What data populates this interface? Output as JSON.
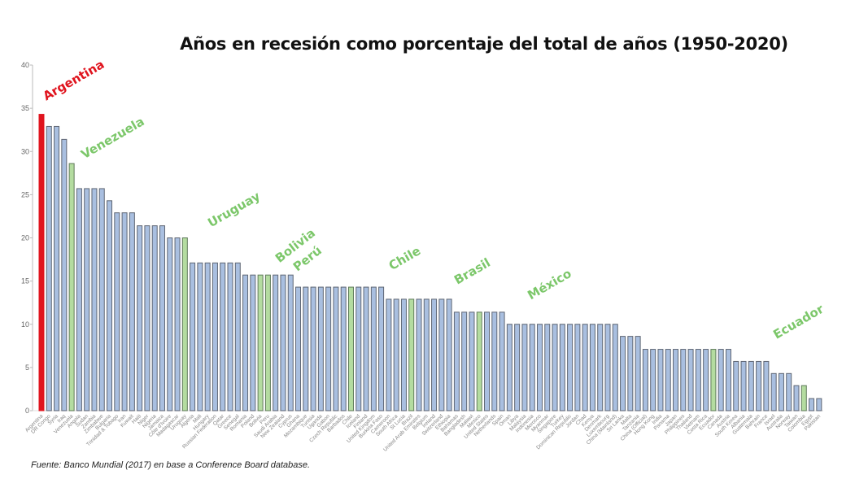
{
  "chart_data": {
    "type": "bar",
    "title": "Años en recesión como porcentaje del total de años (1950-2020)",
    "source": "Fuente: Banco Mundial (2017) en base a Conference Board database.",
    "xlabel": "",
    "ylabel": "",
    "ylim": [
      0,
      40
    ],
    "yticks": [
      0,
      5,
      10,
      15,
      20,
      25,
      30,
      35,
      40
    ],
    "grid": false,
    "colors": {
      "default": "#a9bfe0",
      "highlight_latam": "#b4dca0",
      "argentina": "#e0141e",
      "annotation_green": "#7cc76a",
      "annotation_red": "#e0141e"
    },
    "categories": [
      "Argentina",
      "DR Congo",
      "Syria",
      "Iraq",
      "Venezuela",
      "Angola",
      "Sudan",
      "Zambia",
      "Zimbabwe",
      "Bulgaria",
      "Trinidad & Tobago",
      "Iran",
      "Kuwait",
      "Haiti",
      "Niger",
      "Nigeria",
      "Jamaica",
      "Côte d'Ivoire",
      "Madagascar",
      "Uruguay",
      "Algeria",
      "Mali",
      "Hungary",
      "Russian Federation",
      "Qatar",
      "Greece",
      "Senegal",
      "Romania",
      "Poland",
      "Bolivia",
      "Peru",
      "Saudi Arabia",
      "New Zealand",
      "Cyprus",
      "Ghana",
      "Mozambique",
      "Tunisia",
      "Uganda",
      "Gabon",
      "Czech Republic",
      "Barbados",
      "Chile",
      "Iceland",
      "Finland",
      "United Kingdom",
      "Burkina Faso",
      "Cameroon",
      "South Africa",
      "St Lucia",
      "Brazil",
      "United Arab Emirates",
      "Belgium",
      "Ireland",
      "Switzerland",
      "Ethiopia",
      "Bahamas",
      "Bangladesh",
      "Malawi",
      "Mexico",
      "United States",
      "Netherlands",
      "Spain",
      "Oman",
      "Libya",
      "Malaysia",
      "Indonesia",
      "Morocco",
      "Myanmar",
      "Singapore",
      "Turkey",
      "Dominican Republic",
      "Jordan",
      "Chad",
      "Kenya",
      "Denmark",
      "Luxembourg",
      "China (Mainland)",
      "Sri Lanka",
      "Malta",
      "Tanzania",
      "China (Official)",
      "Hong Kong",
      "India",
      "Panama",
      "Japan",
      "Philippines",
      "Thailand",
      "Vietnam",
      "Costa Rica",
      "Ecuador",
      "Canada",
      "Austria",
      "South Korea",
      "Albania",
      "Guatemala",
      "Bahrain",
      "France",
      "Israel",
      "Australia",
      "Norway",
      "Taiwan",
      "Colombia",
      "Egypt",
      "Pakistan"
    ],
    "values": [
      34.3,
      32.9,
      32.9,
      31.4,
      28.6,
      25.7,
      25.7,
      25.7,
      25.7,
      24.3,
      22.9,
      22.9,
      22.9,
      21.4,
      21.4,
      21.4,
      21.4,
      20.0,
      20.0,
      20.0,
      17.1,
      17.1,
      17.1,
      17.1,
      17.1,
      17.1,
      17.1,
      15.7,
      15.7,
      15.7,
      15.7,
      15.7,
      15.7,
      15.7,
      14.3,
      14.3,
      14.3,
      14.3,
      14.3,
      14.3,
      14.3,
      14.3,
      14.3,
      14.3,
      14.3,
      14.3,
      12.9,
      12.9,
      12.9,
      12.9,
      12.9,
      12.9,
      12.9,
      12.9,
      12.9,
      11.4,
      11.4,
      11.4,
      11.4,
      11.4,
      11.4,
      11.4,
      10.0,
      10.0,
      10.0,
      10.0,
      10.0,
      10.0,
      10.0,
      10.0,
      10.0,
      10.0,
      10.0,
      10.0,
      10.0,
      10.0,
      10.0,
      8.6,
      8.6,
      8.6,
      7.1,
      7.1,
      7.1,
      7.1,
      7.1,
      7.1,
      7.1,
      7.1,
      7.1,
      7.1,
      7.1,
      7.1,
      5.7,
      5.7,
      5.7,
      5.7,
      5.7,
      4.3,
      4.3,
      4.3,
      2.9,
      2.9,
      1.4,
      1.4
    ],
    "red_bars": [
      "Argentina"
    ],
    "green_bars": [
      "Venezuela",
      "Uruguay",
      "Bolivia",
      "Peru",
      "Chile",
      "Brazil",
      "Mexico",
      "Ecuador",
      "Colombia"
    ],
    "annotations": [
      {
        "text": "Argentina",
        "color": "red"
      },
      {
        "text": "Venezuela",
        "color": "green"
      },
      {
        "text": "Uruguay",
        "color": "green"
      },
      {
        "text": "Bolivia",
        "color": "green"
      },
      {
        "text": "Perú",
        "color": "green"
      },
      {
        "text": "Chile",
        "color": "green"
      },
      {
        "text": "Brasil",
        "color": "green"
      },
      {
        "text": "México",
        "color": "green"
      },
      {
        "text": "Ecuador",
        "color": "green"
      }
    ]
  }
}
